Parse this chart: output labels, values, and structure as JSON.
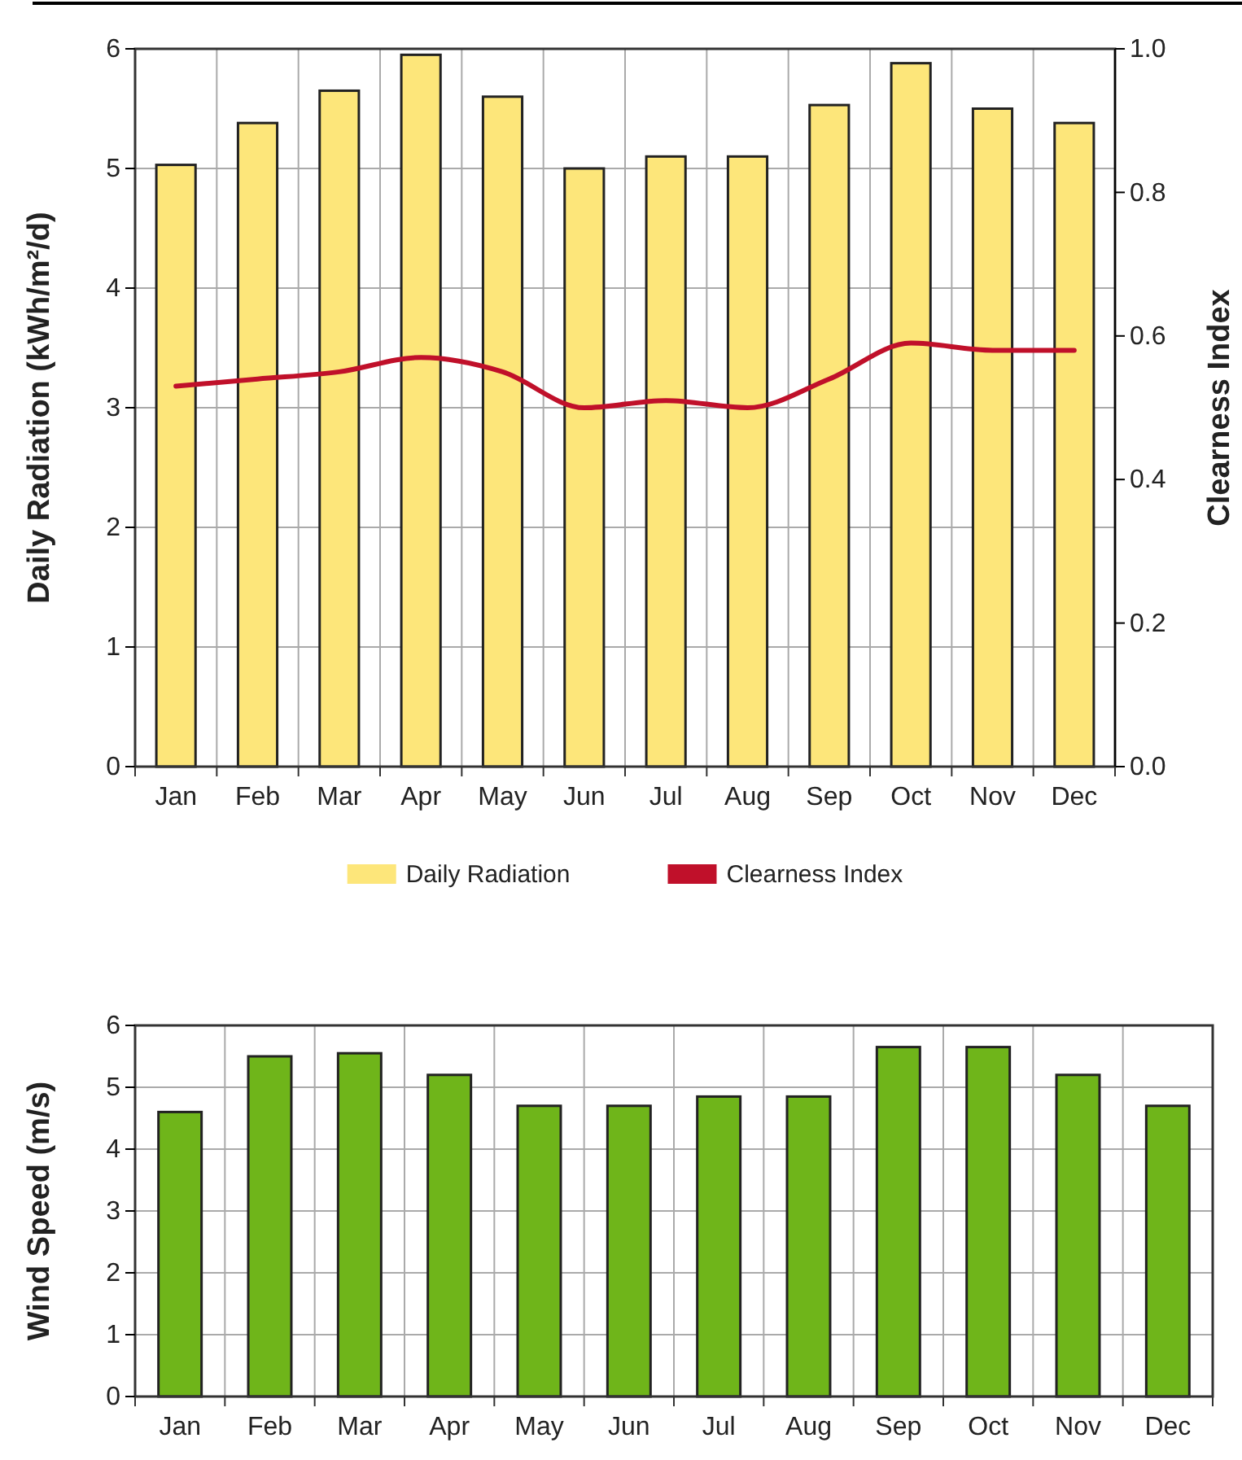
{
  "chart_data": [
    {
      "type": "bar",
      "ylabel": "Daily Radiation (kWh/m²/d)",
      "y2label": "Clearness Index",
      "categories": [
        "Jan",
        "Feb",
        "Mar",
        "Apr",
        "May",
        "Jun",
        "Jul",
        "Aug",
        "Sep",
        "Oct",
        "Nov",
        "Dec"
      ],
      "series": [
        {
          "name": "Daily Radiation",
          "color": "#fde67a",
          "values": [
            5.03,
            5.38,
            5.65,
            5.95,
            5.6,
            5.0,
            5.1,
            5.1,
            5.53,
            5.88,
            5.5,
            5.38
          ]
        },
        {
          "name": "Clearness Index",
          "type": "line",
          "axis": "y2",
          "color": "#c0102a",
          "values": [
            0.53,
            0.54,
            0.55,
            0.57,
            0.55,
            0.5,
            0.51,
            0.5,
            0.54,
            0.59,
            0.58,
            0.58
          ]
        }
      ],
      "ylim": [
        0,
        6
      ],
      "yticks": [
        0,
        1,
        2,
        3,
        4,
        5,
        6
      ],
      "y2lim": [
        0,
        1
      ],
      "y2ticks": [
        {
          "value": 0,
          "label": "0.0"
        },
        {
          "value": 0.2,
          "label": "0.2"
        },
        {
          "value": 0.4,
          "label": "0.4"
        },
        {
          "value": 0.6,
          "label": "0.6"
        },
        {
          "value": 0.8,
          "label": "0.8"
        },
        {
          "value": 1,
          "label": "1.0"
        }
      ],
      "grid": true,
      "legend": "bottom"
    },
    {
      "type": "bar",
      "ylabel": "Wind Speed (m/s)",
      "categories": [
        "Jan",
        "Feb",
        "Mar",
        "Apr",
        "May",
        "Jun",
        "Jul",
        "Aug",
        "Sep",
        "Oct",
        "Nov",
        "Dec"
      ],
      "series": [
        {
          "color": "#6fb51a",
          "values": [
            4.6,
            5.5,
            5.55,
            5.2,
            4.7,
            4.7,
            4.85,
            4.85,
            5.65,
            5.65,
            5.2,
            4.7
          ]
        }
      ],
      "ylim": [
        0,
        6
      ],
      "yticks": [
        0,
        1,
        2,
        3,
        4,
        5,
        6
      ],
      "grid": true
    }
  ]
}
